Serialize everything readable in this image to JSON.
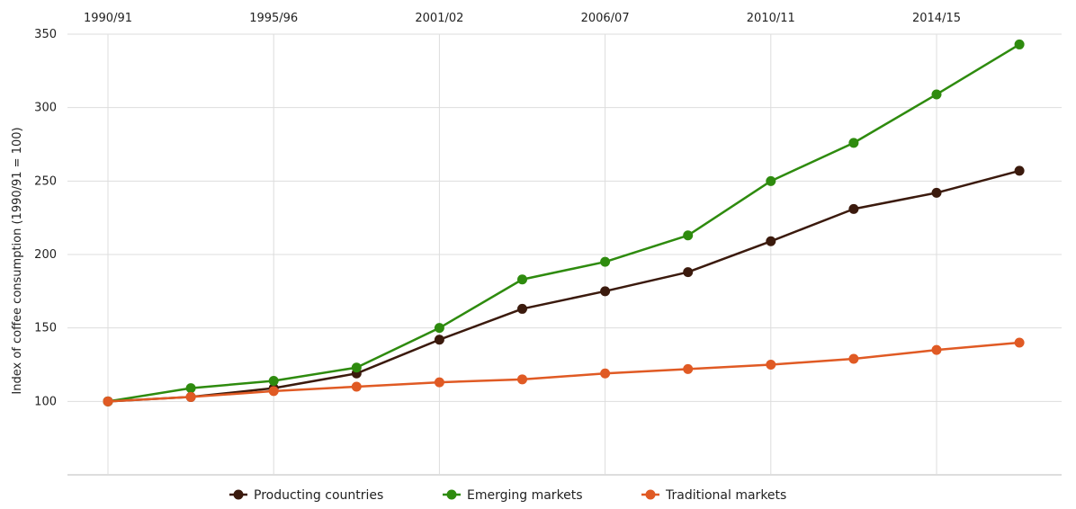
{
  "chart_data": {
    "type": "line",
    "title": "",
    "xlabel": "",
    "ylabel": "Index of coffee consumption (1990/91 = 100)",
    "x": [
      "1990/91",
      "",
      "1995/96",
      "",
      "2001/02",
      "",
      "2006/07",
      "",
      "2010/11",
      "",
      "2014/15",
      ""
    ],
    "x_tick_labels": [
      "1990/91",
      "1995/96",
      "2001/02",
      "2006/07",
      "2010/11",
      "2014/15"
    ],
    "ylim": [
      50,
      350
    ],
    "yticks": [
      100,
      150,
      200,
      250,
      300,
      350
    ],
    "grid": true,
    "legend_position": "bottom",
    "series": [
      {
        "name": "Producting countries",
        "color": "#3b1a0d",
        "values": [
          100,
          103,
          109,
          119,
          142,
          163,
          175,
          188,
          209,
          231,
          242,
          257
        ]
      },
      {
        "name": "Emerging markets",
        "color": "#2e8b0e",
        "values": [
          100,
          109,
          114,
          123,
          150,
          183,
          195,
          213,
          250,
          276,
          309,
          343
        ]
      },
      {
        "name": "Traditional markets",
        "color": "#e05a24",
        "values": [
          100,
          103,
          107,
          110,
          113,
          115,
          119,
          122,
          125,
          129,
          135,
          140
        ]
      }
    ]
  }
}
